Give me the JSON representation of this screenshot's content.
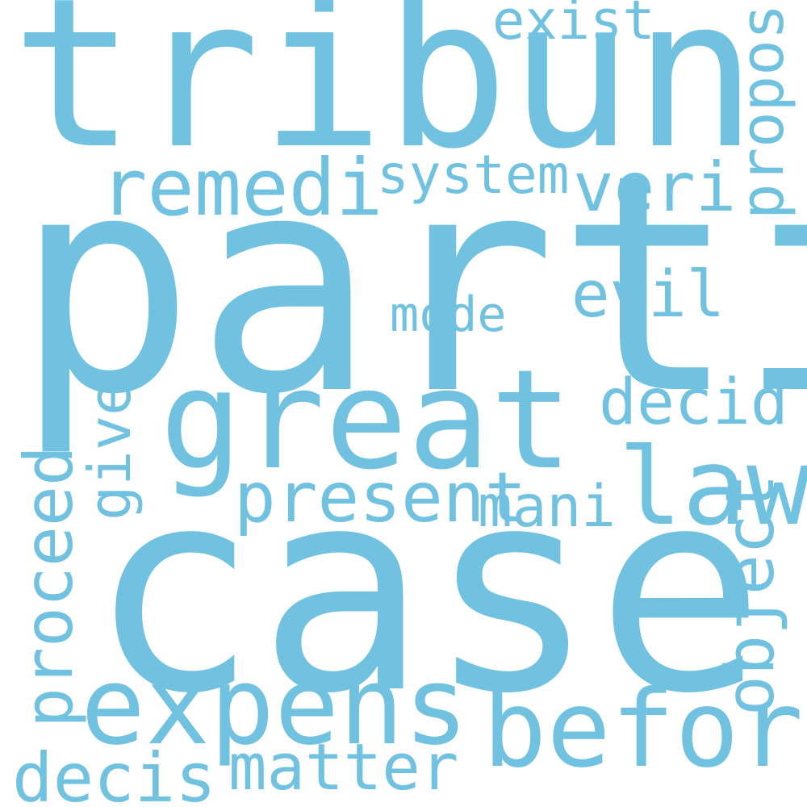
{
  "colors": {
    "background": "#ffffff",
    "word": "#71c2e0"
  },
  "words": {
    "parti": "parti",
    "case": "case",
    "tribun": "tribun",
    "great": "great",
    "expens": "expens",
    "befor": "befor",
    "law": "law",
    "remedi": "remedi",
    "present": "present",
    "decis": "decis",
    "proceed": "proceed",
    "object": "object",
    "veri": "veri",
    "matter": "matter",
    "decid": "decid",
    "evil": "evil",
    "propos": "propos",
    "mani": "mani",
    "give": "give",
    "system": "system",
    "exist": "exist",
    "mode": "mode"
  }
}
